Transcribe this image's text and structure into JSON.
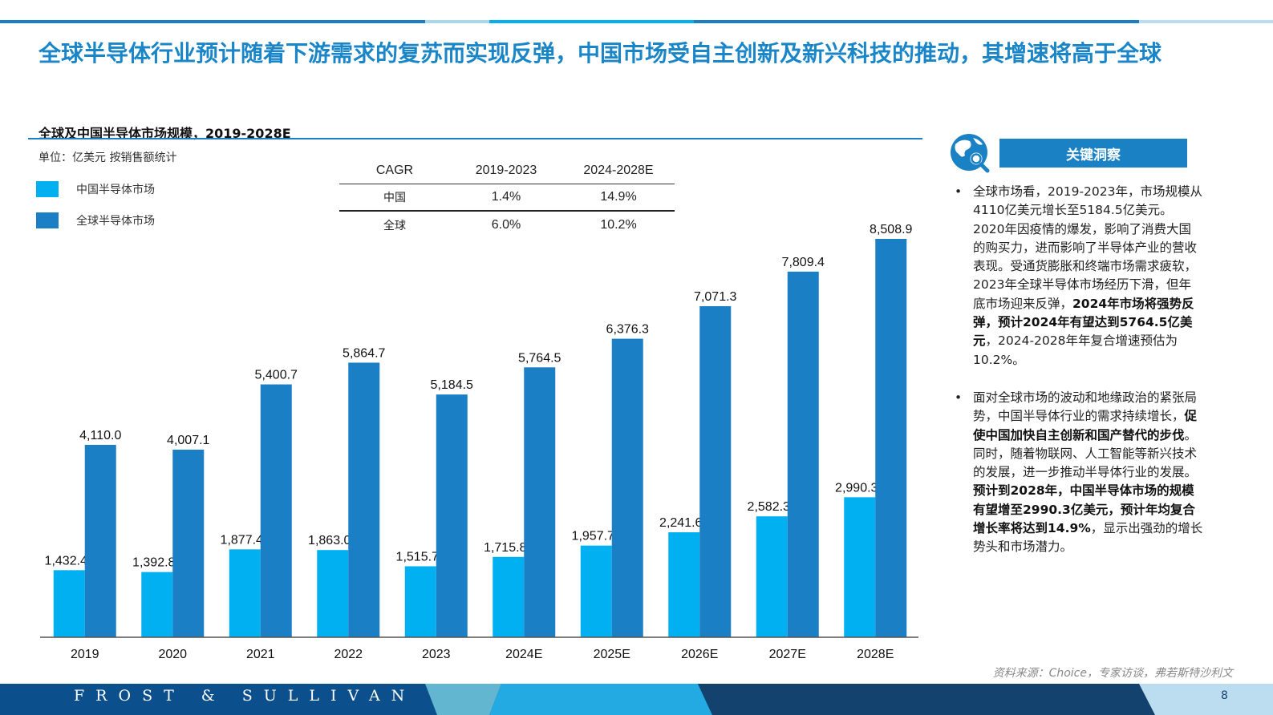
{
  "title": "全球半导体行业预计随着下游需求的复苏而实现反弹，中国市场受自主创新及新兴科技的推动，其增速将高于全球",
  "chart_title": "全球及中国半导体市场规模，2019-2028E",
  "unit": "单位：亿美元  按销售额统计",
  "colors": {
    "china": "#00b0f0",
    "global": "#1a7fc4",
    "accent": "#1a86c8"
  },
  "legend": [
    "中国半导体市场",
    "全球半导体市场"
  ],
  "cagr_table": {
    "header": [
      "CAGR",
      "2019-2023",
      "2024-2028E"
    ],
    "rows": [
      [
        "中国",
        "1.4%",
        "14.9%"
      ],
      [
        "全球",
        "6.0%",
        "10.2%"
      ]
    ]
  },
  "chart_data": {
    "type": "bar",
    "categories": [
      "2019",
      "2020",
      "2021",
      "2022",
      "2023",
      "2024E",
      "2025E",
      "2026E",
      "2027E",
      "2028E"
    ],
    "series": [
      {
        "name": "中国半导体市场",
        "values": [
          1432.4,
          1392.8,
          1877.4,
          1863.0,
          1515.7,
          1715.8,
          1957.7,
          2241.6,
          2582.3,
          2990.3
        ],
        "labels": [
          "1,432.4",
          "1,392.8",
          "1,877.4",
          "1,863.0",
          "1,515.7",
          "1,715.8",
          "1,957.7",
          "2,241.6",
          "2,582.3",
          "2,990.3"
        ]
      },
      {
        "name": "全球半导体市场",
        "values": [
          4110.0,
          4007.1,
          5400.7,
          5864.7,
          5184.5,
          5764.5,
          6376.3,
          7071.3,
          7809.4,
          8508.9
        ],
        "labels": [
          "4,110.0",
          "4,007.1",
          "5,400.7",
          "5,864.7",
          "5,184.5",
          "5,764.5",
          "6,376.3",
          "7,071.3",
          "7,809.4",
          "8,508.9"
        ]
      }
    ],
    "ylim": [
      0,
      8508.9
    ],
    "grid": false,
    "legend_position": "top-left"
  },
  "panel": {
    "heading": "关键洞察",
    "icon": "globe-search-icon",
    "bullets": [
      [
        {
          "t": "全球市场看，2019-2023年，市场规模从4110亿美元增长至5184.5亿美元。2020年因疫情的爆发，影响了消费大国的购买力，进而影响了半导体产业的营收表现。受通货膨胀和终端市场需求疲软，2023年全球半导体市场经历下滑，但年底市场迎来反弹，"
        },
        {
          "t": "2024年市场将强势反弹，预计2024年有望达到5764.5亿美元",
          "b": true
        },
        {
          "t": "，2024-2028年年复合增速预估为10.2%。"
        }
      ],
      [
        {
          "t": "面对全球市场的波动和地缘政治的紧张局势，中国半导体行业的需求持续增长，"
        },
        {
          "t": "促使中国加快自主创新和国产替代的步伐",
          "b": true
        },
        {
          "t": "。同时，随着物联网、人工智能等新兴技术的发展，进一步推动半导体行业的发展。"
        },
        {
          "t": "预计到2028年，中国半导体市场的规模有望增至2990.3亿美元，预计年均复合增长率将达到14.9%",
          "b": true
        },
        {
          "t": "，显示出强劲的增长势头和市场潜力。"
        }
      ]
    ]
  },
  "source": "资料来源：Choice，专家访谈，弗若斯特沙利文",
  "footer": {
    "brand": "FROST & SULLIVAN",
    "page": "8"
  }
}
